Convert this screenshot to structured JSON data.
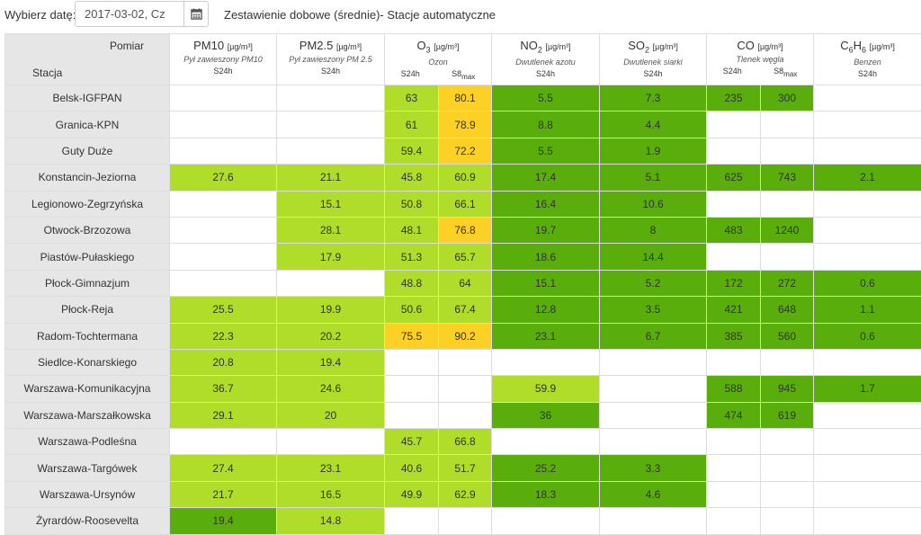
{
  "header": {
    "date_label": "Wybierz datę:",
    "date_value": "2017-03-02, Cz",
    "calendar_icon": "calendar-icon",
    "report_title": "Zestawienie dobowe (średnie)- Stacje automatyczne"
  },
  "table": {
    "corner": {
      "measure": "Pomiar",
      "station": "Stacja"
    },
    "columns": [
      {
        "name": "PM10",
        "unit": "[µg/m³]",
        "desc": "Pył zawieszony PM10",
        "agg": [
          "S24h"
        ]
      },
      {
        "name": "PM2.5",
        "unit": "[µg/m³]",
        "desc": "Pył zawieszony PM 2.5",
        "agg": [
          "S24h"
        ]
      },
      {
        "name_base": "O",
        "name_sub": "3",
        "unit": "[µg/m³]",
        "desc": "Ozon",
        "agg": [
          "S24h",
          "S8",
          "max"
        ]
      },
      {
        "name_base": "NO",
        "name_sub": "2",
        "unit": "[µg/m³]",
        "desc": "Dwutlenek azotu",
        "agg": [
          "S24h"
        ]
      },
      {
        "name_base": "SO",
        "name_sub": "2",
        "unit": "[µg/m³]",
        "desc": "Dwutlenek siarki",
        "agg": [
          "S24h"
        ]
      },
      {
        "name": "CO",
        "unit": "[µg/m³]",
        "desc": "Tlenek węgla",
        "agg": [
          "S24h",
          "S8",
          "max"
        ]
      },
      {
        "name_base": "C",
        "name_sub": "6",
        "name_mid": "H",
        "name_sub2": "6",
        "unit": "[µg/m³]",
        "desc": "Benzen",
        "agg": [
          "S24h"
        ]
      }
    ],
    "colors": {
      "light_green": "#b0dd2a",
      "green": "#5aae0c",
      "yellow": "#fdd025",
      "station_bg": "#e6e6e6"
    },
    "rows": [
      {
        "station": "Belsk-IGFPAN",
        "cells": [
          [
            "",
            ""
          ],
          [
            "",
            ""
          ],
          [
            "63",
            "lg"
          ],
          [
            "80.1",
            "y"
          ],
          [
            "5.5",
            "g"
          ],
          [
            "7.3",
            "g"
          ],
          [
            "235",
            "g"
          ],
          [
            "300",
            "g"
          ],
          [
            "",
            ""
          ]
        ]
      },
      {
        "station": "Granica-KPN",
        "cells": [
          [
            "",
            ""
          ],
          [
            "",
            ""
          ],
          [
            "61",
            "lg"
          ],
          [
            "78.9",
            "y"
          ],
          [
            "8.8",
            "g"
          ],
          [
            "4.4",
            "g"
          ],
          [
            "",
            ""
          ],
          [
            "",
            ""
          ],
          [
            "",
            ""
          ]
        ]
      },
      {
        "station": "Guty Duże",
        "cells": [
          [
            "",
            ""
          ],
          [
            "",
            ""
          ],
          [
            "59.4",
            "lg"
          ],
          [
            "72.2",
            "y"
          ],
          [
            "5.5",
            "g"
          ],
          [
            "1.9",
            "g"
          ],
          [
            "",
            ""
          ],
          [
            "",
            ""
          ],
          [
            "",
            ""
          ]
        ]
      },
      {
        "station": "Konstancin-Jeziorna",
        "cells": [
          [
            "27.6",
            "lg"
          ],
          [
            "21.1",
            "lg"
          ],
          [
            "45.8",
            "lg"
          ],
          [
            "60.9",
            "lg"
          ],
          [
            "17.4",
            "g"
          ],
          [
            "5.1",
            "g"
          ],
          [
            "625",
            "g"
          ],
          [
            "743",
            "g"
          ],
          [
            "2.1",
            "g"
          ]
        ]
      },
      {
        "station": "Legionowo-Zegrzyńska",
        "cells": [
          [
            "",
            ""
          ],
          [
            "15.1",
            "lg"
          ],
          [
            "50.8",
            "lg"
          ],
          [
            "66.1",
            "lg"
          ],
          [
            "16.4",
            "g"
          ],
          [
            "10.6",
            "g"
          ],
          [
            "",
            ""
          ],
          [
            "",
            ""
          ],
          [
            "",
            ""
          ]
        ]
      },
      {
        "station": "Otwock-Brzozowa",
        "cells": [
          [
            "",
            ""
          ],
          [
            "28.1",
            "lg"
          ],
          [
            "48.1",
            "lg"
          ],
          [
            "76.8",
            "y"
          ],
          [
            "19.7",
            "g"
          ],
          [
            "8",
            "g"
          ],
          [
            "483",
            "g"
          ],
          [
            "1240",
            "g"
          ],
          [
            "",
            ""
          ]
        ]
      },
      {
        "station": "Piastów-Pułaskiego",
        "cells": [
          [
            "",
            ""
          ],
          [
            "17.9",
            "lg"
          ],
          [
            "51.3",
            "lg"
          ],
          [
            "65.7",
            "lg"
          ],
          [
            "18.6",
            "g"
          ],
          [
            "14.4",
            "g"
          ],
          [
            "",
            ""
          ],
          [
            "",
            ""
          ],
          [
            "",
            ""
          ]
        ]
      },
      {
        "station": "Płock-Gimnazjum",
        "cells": [
          [
            "",
            ""
          ],
          [
            "",
            ""
          ],
          [
            "48.8",
            "lg"
          ],
          [
            "64",
            "lg"
          ],
          [
            "15.1",
            "g"
          ],
          [
            "5.2",
            "g"
          ],
          [
            "172",
            "g"
          ],
          [
            "272",
            "g"
          ],
          [
            "0.6",
            "g"
          ]
        ]
      },
      {
        "station": "Płock-Reja",
        "cells": [
          [
            "25.5",
            "lg"
          ],
          [
            "19.9",
            "lg"
          ],
          [
            "50.6",
            "lg"
          ],
          [
            "67.4",
            "lg"
          ],
          [
            "12.8",
            "g"
          ],
          [
            "3.5",
            "g"
          ],
          [
            "421",
            "g"
          ],
          [
            "648",
            "g"
          ],
          [
            "1.1",
            "g"
          ]
        ]
      },
      {
        "station": "Radom-Tochtermana",
        "cells": [
          [
            "22.3",
            "lg"
          ],
          [
            "20.2",
            "lg"
          ],
          [
            "75.5",
            "y"
          ],
          [
            "90.2",
            "y"
          ],
          [
            "23.1",
            "g"
          ],
          [
            "6.7",
            "g"
          ],
          [
            "385",
            "g"
          ],
          [
            "560",
            "g"
          ],
          [
            "0.6",
            "g"
          ]
        ]
      },
      {
        "station": "Siedlce-Konarskiego",
        "cells": [
          [
            "20.8",
            "lg"
          ],
          [
            "19.4",
            "lg"
          ],
          [
            "",
            ""
          ],
          [
            "",
            ""
          ],
          [
            "",
            ""
          ],
          [
            "",
            ""
          ],
          [
            "",
            ""
          ],
          [
            "",
            ""
          ],
          [
            "",
            ""
          ]
        ]
      },
      {
        "station": "Warszawa-Komunikacyjna",
        "cells": [
          [
            "36.7",
            "lg"
          ],
          [
            "24.6",
            "lg"
          ],
          [
            "",
            ""
          ],
          [
            "",
            ""
          ],
          [
            "59.9",
            "lg"
          ],
          [
            "",
            ""
          ],
          [
            "588",
            "g"
          ],
          [
            "945",
            "g"
          ],
          [
            "1.7",
            "g"
          ]
        ]
      },
      {
        "station": "Warszawa-Marszałkowska",
        "cells": [
          [
            "29.1",
            "lg"
          ],
          [
            "20",
            "lg"
          ],
          [
            "",
            ""
          ],
          [
            "",
            ""
          ],
          [
            "36",
            "g"
          ],
          [
            "",
            ""
          ],
          [
            "474",
            "g"
          ],
          [
            "619",
            "g"
          ],
          [
            "",
            ""
          ]
        ]
      },
      {
        "station": "Warszawa-Podleśna",
        "cells": [
          [
            "",
            ""
          ],
          [
            "",
            ""
          ],
          [
            "45.7",
            "lg"
          ],
          [
            "66.8",
            "lg"
          ],
          [
            "",
            ""
          ],
          [
            "",
            ""
          ],
          [
            "",
            ""
          ],
          [
            "",
            ""
          ],
          [
            "",
            ""
          ]
        ]
      },
      {
        "station": "Warszawa-Targówek",
        "cells": [
          [
            "27.4",
            "lg"
          ],
          [
            "23.1",
            "lg"
          ],
          [
            "40.6",
            "lg"
          ],
          [
            "51.7",
            "lg"
          ],
          [
            "25.2",
            "g"
          ],
          [
            "3.3",
            "g"
          ],
          [
            "",
            ""
          ],
          [
            "",
            ""
          ],
          [
            "",
            ""
          ]
        ]
      },
      {
        "station": "Warszawa-Ursynów",
        "cells": [
          [
            "21.7",
            "lg"
          ],
          [
            "16.5",
            "lg"
          ],
          [
            "49.9",
            "lg"
          ],
          [
            "62.9",
            "lg"
          ],
          [
            "18.3",
            "g"
          ],
          [
            "4.6",
            "g"
          ],
          [
            "",
            ""
          ],
          [
            "",
            ""
          ],
          [
            "",
            ""
          ]
        ]
      },
      {
        "station": "Żyrardów-Roosevelta",
        "cells": [
          [
            "19.4",
            "g"
          ],
          [
            "14.8",
            "lg"
          ],
          [
            "",
            ""
          ],
          [
            "",
            ""
          ],
          [
            "",
            ""
          ],
          [
            "",
            ""
          ],
          [
            "",
            ""
          ],
          [
            "",
            ""
          ],
          [
            "",
            ""
          ]
        ]
      }
    ]
  }
}
